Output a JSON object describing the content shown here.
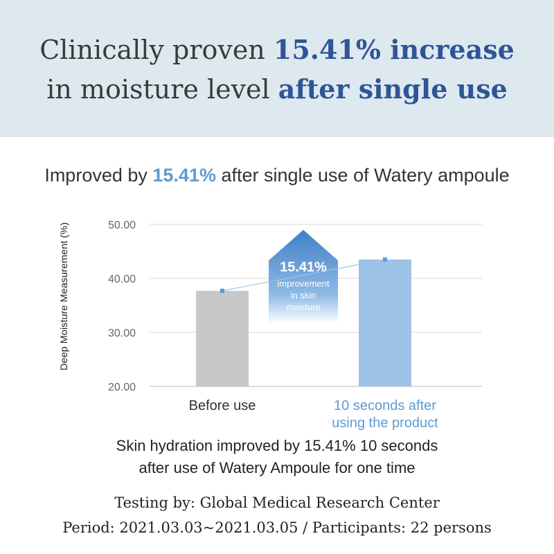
{
  "headline": {
    "line1_prefix": "Clinically proven ",
    "line1_highlight": "15.41% increase",
    "line2_prefix": "in moisture level ",
    "line2_highlight": "after single use"
  },
  "subtitle": {
    "prefix": "Improved by ",
    "highlight": "15.41%",
    "suffix": " after single use of Watery ampoule"
  },
  "chart_data": {
    "type": "bar",
    "ylabel": "Deep Moisture Measurement (%)",
    "ylim": [
      20,
      50
    ],
    "yticks": [
      "20.00",
      "30.00",
      "40.00",
      "50.00"
    ],
    "categories": [
      "Before use",
      "10 seconds after using the product"
    ],
    "category_lines": [
      [
        "Before use"
      ],
      [
        "10 seconds after",
        "using the product"
      ]
    ],
    "values": [
      37.7,
      43.5
    ],
    "bar_colors": [
      "#c8c8c8",
      "#9dc3e6"
    ],
    "label_colors": [
      "#333333",
      "#5b9bd5"
    ],
    "annotation": {
      "percent": "15.41%",
      "lines": [
        "improvement",
        "in skin",
        "moisture"
      ]
    }
  },
  "caption": {
    "line1": "Skin hydration improved by 15.41% 10 seconds",
    "line2": "after use of Watery Ampoule for one time"
  },
  "footer": {
    "line1": "Testing by: Global Medical Research Center",
    "line2": "Period: 2021.03.03~2021.03.05 / Participants:  22 persons"
  },
  "colors": {
    "banner_bg": "#dde9ee",
    "headline_accent": "#2f5597",
    "chart_accent": "#5b9bd5"
  }
}
